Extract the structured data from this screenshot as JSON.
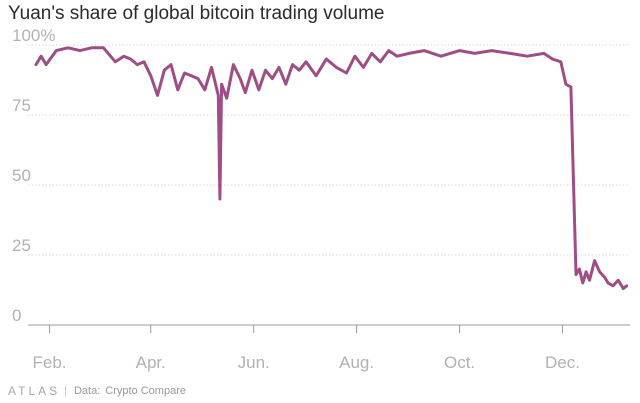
{
  "chart_data": {
    "type": "line",
    "title": "Yuan's share of global bitcoin trading volume",
    "xlabel": "",
    "ylabel": "",
    "ylim": [
      0,
      100
    ],
    "y_ticks": [
      {
        "value": 0,
        "label": "0"
      },
      {
        "value": 25,
        "label": "25"
      },
      {
        "value": 50,
        "label": "50"
      },
      {
        "value": 75,
        "label": "75"
      },
      {
        "value": 100,
        "label": "100%"
      }
    ],
    "x_ticks": [
      "Feb.",
      "Apr.",
      "Jun.",
      "Aug.",
      "Oct.",
      "Dec."
    ],
    "x_range": [
      "2016-01-24",
      "2017-01-10"
    ],
    "grid": true,
    "line_color": "#a04d85",
    "series": [
      {
        "x": [
          "2016-01-24",
          "2016-01-27",
          "2016-01-30",
          "2016-02-05",
          "2016-02-12",
          "2016-02-19",
          "2016-02-26",
          "2016-03-04",
          "2016-03-11",
          "2016-03-16",
          "2016-03-20",
          "2016-03-24",
          "2016-03-28",
          "2016-04-01",
          "2016-04-05",
          "2016-04-09",
          "2016-04-13",
          "2016-04-17",
          "2016-04-21",
          "2016-04-25",
          "2016-04-29",
          "2016-05-03",
          "2016-05-07",
          "2016-05-11",
          "2016-05-12",
          "2016-05-13",
          "2016-05-16",
          "2016-05-20",
          "2016-05-24",
          "2016-05-27",
          "2016-05-31",
          "2016-06-04",
          "2016-06-08",
          "2016-06-12",
          "2016-06-16",
          "2016-06-20",
          "2016-06-24",
          "2016-06-28",
          "2016-07-02",
          "2016-07-08",
          "2016-07-14",
          "2016-07-20",
          "2016-07-26",
          "2016-07-31",
          "2016-08-05",
          "2016-08-10",
          "2016-08-15",
          "2016-08-20",
          "2016-08-25",
          "2016-09-01",
          "2016-09-10",
          "2016-09-20",
          "2016-10-01",
          "2016-10-10",
          "2016-10-20",
          "2016-10-31",
          "2016-11-10",
          "2016-11-20",
          "2016-11-25",
          "2016-11-30",
          "2016-12-03",
          "2016-12-06",
          "2016-12-09",
          "2016-12-11",
          "2016-12-13",
          "2016-12-15",
          "2016-12-17",
          "2016-12-20",
          "2016-12-23",
          "2016-12-26",
          "2016-12-28",
          "2016-12-31",
          "2017-01-03",
          "2017-01-06",
          "2017-01-08"
        ],
        "values": [
          93,
          96,
          93,
          98,
          99,
          98,
          99,
          99,
          94,
          96,
          95,
          93,
          94,
          89,
          82,
          91,
          93,
          84,
          90,
          89,
          88,
          84,
          92,
          82,
          45,
          86,
          81,
          93,
          88,
          83,
          91,
          84,
          91,
          88,
          92,
          86,
          93,
          91,
          94,
          89,
          95,
          92,
          90,
          96,
          92,
          97,
          94,
          98,
          96,
          97,
          98,
          96,
          98,
          97,
          98,
          97,
          96,
          97,
          95,
          94,
          86,
          85,
          18,
          20,
          15,
          19,
          16,
          23,
          19,
          17,
          15,
          14,
          16,
          13,
          14
        ]
      }
    ]
  },
  "footer": {
    "brand": "ATLAS",
    "separator": "|",
    "data_label": "Data:",
    "source": "Crypto Compare"
  }
}
